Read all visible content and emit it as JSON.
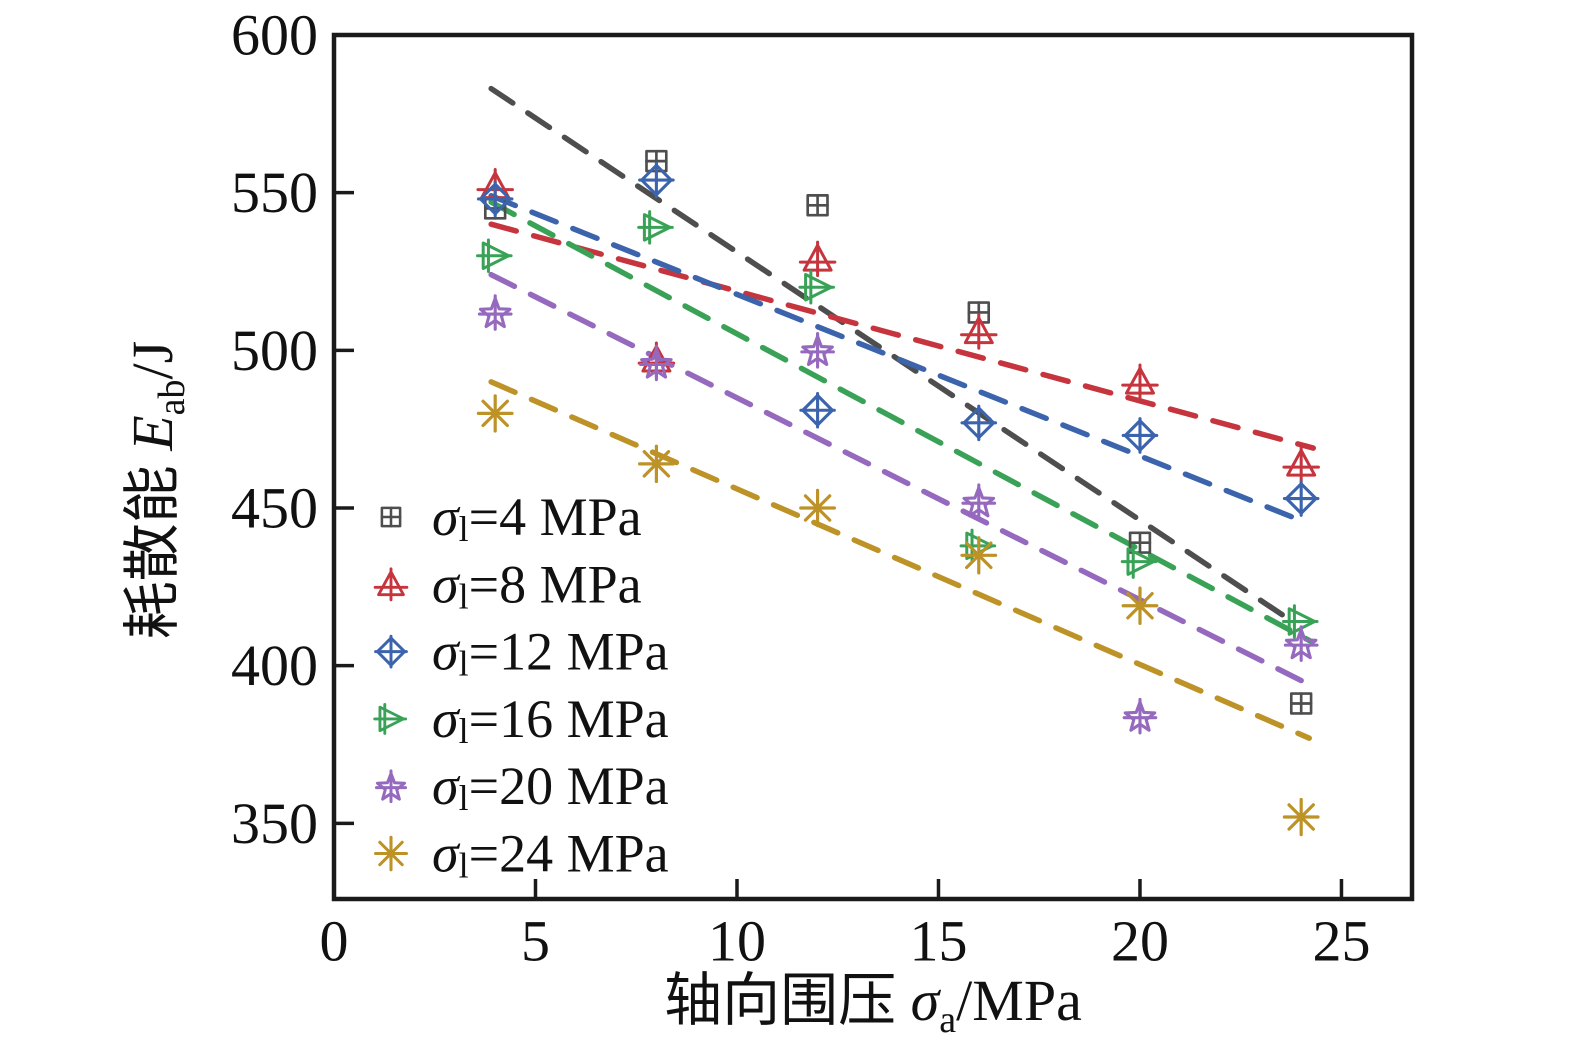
{
  "figure": {
    "background": "#ffffff",
    "frame_color": "#1a1a1a",
    "text_color": "#111111"
  },
  "axes": {
    "x": {
      "title_full": "轴向围压 σa/MPa",
      "title_prefix": "轴向围压 ",
      "title_symbol": "σ",
      "title_sub": "a",
      "title_suffix": "/MPa",
      "tick_labels": [
        "0",
        "5",
        "10",
        "15",
        "20",
        "25"
      ],
      "tick_values": [
        0,
        5,
        10,
        15,
        20,
        25
      ],
      "range": [
        0,
        26.75
      ]
    },
    "y": {
      "title_full": "耗散能 Eab/J",
      "title_prefix": "耗散能 ",
      "title_symbol": "E",
      "title_sub": "ab",
      "title_suffix": "/J",
      "tick_labels": [
        "350",
        "400",
        "450",
        "500",
        "550",
        "600"
      ],
      "tick_values": [
        350,
        400,
        450,
        500,
        550,
        600
      ],
      "range": [
        326,
        600
      ]
    }
  },
  "legend": {
    "entries": [
      {
        "symbol": "σ",
        "sub": "l",
        "rest": "=4 MPa",
        "label_full": "σl=4 MPa",
        "marker": "square-cross",
        "color": "#4e4e4e"
      },
      {
        "symbol": "σ",
        "sub": "l",
        "rest": "=8 MPa",
        "label_full": "σl=8 MPa",
        "marker": "triangle-up-cross",
        "color": "#c6353e"
      },
      {
        "symbol": "σ",
        "sub": "l",
        "rest": "=12 MPa",
        "label_full": "σl=12 MPa",
        "marker": "diamond-cross",
        "color": "#3c64ad"
      },
      {
        "symbol": "σ",
        "sub": "l",
        "rest": "=16 MPa",
        "label_full": "σl=16 MPa",
        "marker": "triangle-right-cross",
        "color": "#39a257"
      },
      {
        "symbol": "σ",
        "sub": "l",
        "rest": "=20 MPa",
        "label_full": "σl=20 MPa",
        "marker": "star-cross",
        "color": "#9569be"
      },
      {
        "symbol": "σ",
        "sub": "l",
        "rest": "=24 MPa",
        "label_full": "σl=24 MPa",
        "marker": "asterisk",
        "color": "#bd9227"
      }
    ]
  },
  "chart_data": {
    "type": "scatter",
    "title": "",
    "xlabel": "轴向围压 σa/MPa",
    "ylabel": "耗散能 Eab/J",
    "xlim": [
      0,
      26.75
    ],
    "ylim": [
      326,
      600
    ],
    "x_ticks": [
      0,
      5,
      10,
      15,
      20,
      25
    ],
    "y_ticks": [
      350,
      400,
      450,
      500,
      550,
      600
    ],
    "grid": false,
    "legend_position": "lower-left-inside",
    "x": [
      4,
      8,
      12,
      16,
      20,
      24
    ],
    "series": [
      {
        "name": "σl=4 MPa",
        "marker": "square-cross",
        "color": "#4e4e4e",
        "values": [
          545,
          560,
          546,
          512,
          439,
          388
        ],
        "trend": {
          "x1": 3.9,
          "y1": 583,
          "x2": 23.9,
          "y2": 413
        }
      },
      {
        "name": "σl=8 MPa",
        "marker": "triangle-up-cross",
        "color": "#c6353e",
        "values": [
          552,
          497,
          529,
          506,
          490,
          464
        ],
        "trend": {
          "x1": 3.9,
          "y1": 540,
          "x2": 24.3,
          "y2": 469
        }
      },
      {
        "name": "σl=12 MPa",
        "marker": "diamond-cross",
        "color": "#3c64ad",
        "values": [
          548,
          554,
          481,
          477,
          473,
          453
        ],
        "trend": {
          "x1": 3.9,
          "y1": 549,
          "x2": 24.0,
          "y2": 446
        }
      },
      {
        "name": "σl=16 MPa",
        "marker": "triangle-right-cross",
        "color": "#39a257",
        "values": [
          530,
          539,
          520,
          438,
          433,
          414
        ],
        "trend": {
          "x1": 3.9,
          "y1": 547,
          "x2": 24.2,
          "y2": 408
        }
      },
      {
        "name": "σl=20 MPa",
        "marker": "star-cross",
        "color": "#9569be",
        "values": [
          512,
          496,
          500,
          452,
          384,
          407
        ],
        "trend": {
          "x1": 3.9,
          "y1": 524,
          "x2": 24.2,
          "y2": 394
        }
      },
      {
        "name": "σl=24 MPa",
        "marker": "asterisk",
        "color": "#bd9227",
        "values": [
          480,
          464,
          450,
          435,
          419,
          352
        ],
        "trend": {
          "x1": 3.9,
          "y1": 490,
          "x2": 24.2,
          "y2": 377
        }
      }
    ]
  }
}
